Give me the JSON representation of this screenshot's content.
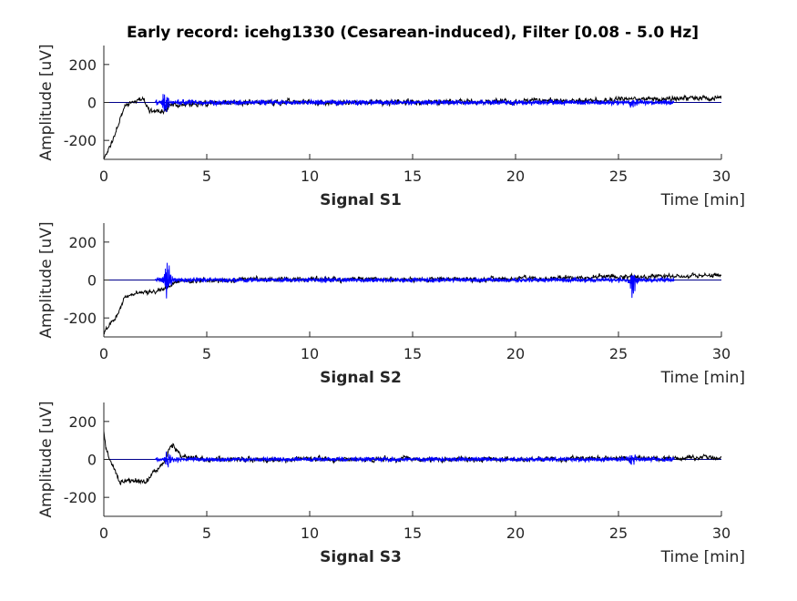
{
  "chart_data": {
    "type": "line",
    "title": "Early record: icehg1330 (Cesarean-induced), Filter [0.08 - 5.0 Hz]",
    "colors": {
      "raw": "#000000",
      "filtered": "#0000ff",
      "zero_line": "#00008b"
    },
    "subplots": [
      {
        "name": "Signal S1",
        "xlabel": "Time [min]",
        "ylabel": "Amplitude [uV]",
        "xlim": [
          0,
          30
        ],
        "ylim": [
          -300,
          300
        ],
        "xticks": [
          "0",
          "5",
          "10",
          "15",
          "20",
          "25",
          "30"
        ],
        "yticks": [
          "200",
          "0",
          "-200"
        ],
        "ytick_values": [
          200,
          0,
          -200
        ],
        "xtick_values": [
          0,
          5,
          10,
          15,
          20,
          25,
          30
        ],
        "raw_trend": [
          [
            0,
            -300
          ],
          [
            0.3,
            -230
          ],
          [
            0.6,
            -160
          ],
          [
            1,
            -20
          ],
          [
            1.5,
            10
          ],
          [
            1.9,
            20
          ],
          [
            2.2,
            -40
          ],
          [
            2.6,
            -45
          ],
          [
            3,
            -50
          ],
          [
            3.2,
            -10
          ],
          [
            4,
            -10
          ],
          [
            6,
            0
          ],
          [
            10,
            0
          ],
          [
            20,
            5
          ],
          [
            30,
            25
          ]
        ],
        "raw_noise": 14,
        "filtered_range": [
          2.5,
          27.7
        ],
        "filtered_noise": 14,
        "bursts": [
          [
            3.0,
            60
          ],
          [
            25.7,
            20
          ]
        ]
      },
      {
        "name": "Signal S2",
        "xlabel": "Time [min]",
        "ylabel": "Amplitude [uV]",
        "xlim": [
          0,
          30
        ],
        "ylim": [
          -300,
          300
        ],
        "xticks": [
          "0",
          "5",
          "10",
          "15",
          "20",
          "25",
          "30"
        ],
        "yticks": [
          "200",
          "0",
          "-200"
        ],
        "ytick_values": [
          200,
          0,
          -200
        ],
        "xtick_values": [
          0,
          5,
          10,
          15,
          20,
          25,
          30
        ],
        "raw_trend": [
          [
            0,
            -290
          ],
          [
            0.3,
            -230
          ],
          [
            0.7,
            -180
          ],
          [
            1,
            -90
          ],
          [
            1.5,
            -70
          ],
          [
            2.5,
            -60
          ],
          [
            3,
            -40
          ],
          [
            3.5,
            -10
          ],
          [
            5,
            0
          ],
          [
            10,
            5
          ],
          [
            20,
            5
          ],
          [
            30,
            25
          ]
        ],
        "raw_noise": 12,
        "filtered_range": [
          2.5,
          27.7
        ],
        "filtered_noise": 12,
        "bursts": [
          [
            3.1,
            110
          ],
          [
            25.7,
            90
          ]
        ]
      },
      {
        "name": "Signal S3",
        "xlabel": "Time [min]",
        "ylabel": "Amplitude [uV]",
        "xlim": [
          0,
          30
        ],
        "ylim": [
          -300,
          300
        ],
        "xticks": [
          "0",
          "5",
          "10",
          "15",
          "20",
          "25",
          "30"
        ],
        "yticks": [
          "200",
          "0",
          "-200"
        ],
        "ytick_values": [
          200,
          0,
          -200
        ],
        "xtick_values": [
          0,
          5,
          10,
          15,
          20,
          25,
          30
        ],
        "raw_trend": [
          [
            0,
            150
          ],
          [
            0.1,
            50
          ],
          [
            0.3,
            0
          ],
          [
            0.8,
            -120
          ],
          [
            1.5,
            -110
          ],
          [
            2,
            -120
          ],
          [
            2.5,
            -60
          ],
          [
            2.9,
            -20
          ],
          [
            3.3,
            80
          ],
          [
            3.8,
            20
          ],
          [
            5,
            0
          ],
          [
            20,
            0
          ],
          [
            30,
            10
          ]
        ],
        "raw_noise": 13,
        "filtered_range": [
          2.5,
          27.7
        ],
        "filtered_noise": 12,
        "bursts": [
          [
            3.1,
            40
          ],
          [
            25.7,
            30
          ]
        ]
      }
    ]
  }
}
